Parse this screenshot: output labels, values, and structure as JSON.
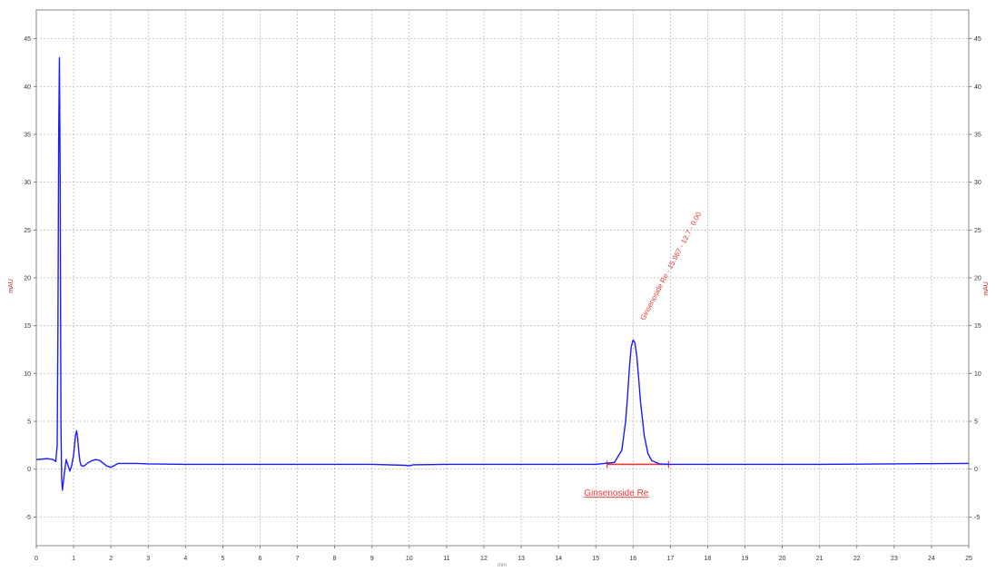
{
  "chart_data": {
    "type": "line",
    "title": "",
    "xlabel": "min",
    "ylabel_left": "mAU",
    "ylabel_right": "mAU",
    "xlim": [
      0,
      25
    ],
    "ylim": [
      -8,
      48
    ],
    "x_ticks": [
      "0",
      "1",
      "2",
      "3",
      "4",
      "5",
      "6",
      "7",
      "8",
      "9",
      "10",
      "11",
      "12",
      "13",
      "14",
      "15",
      "16",
      "17",
      "18",
      "19",
      "20",
      "21",
      "22",
      "23",
      "24",
      "25"
    ],
    "y_ticks": [
      {
        "value": -5,
        "label": "-5"
      },
      {
        "value": 0,
        "label": "0"
      },
      {
        "value": 5,
        "label": "5"
      },
      {
        "value": 10,
        "label": "10"
      },
      {
        "value": 15,
        "label": "15"
      },
      {
        "value": 20,
        "label": "20"
      },
      {
        "value": 25,
        "label": "25"
      },
      {
        "value": 30,
        "label": "30"
      },
      {
        "value": 35,
        "label": "35"
      },
      {
        "value": 40,
        "label": "40"
      },
      {
        "value": 45,
        "label": "45"
      }
    ],
    "grid": true,
    "line_color": "#1a1aff",
    "annotation_color": "#e53935",
    "series": [
      {
        "x": [
          0.0,
          0.3,
          0.45,
          0.52,
          0.56,
          0.58,
          0.6,
          0.62,
          0.64,
          0.66,
          0.68,
          0.7,
          0.72,
          0.75,
          0.8,
          0.85,
          0.9,
          0.95,
          1.0,
          1.05,
          1.08,
          1.11,
          1.14,
          1.17,
          1.2,
          1.25,
          1.3,
          1.4,
          1.5,
          1.6,
          1.7,
          1.8,
          1.9,
          2.0,
          2.1,
          2.2,
          2.4,
          2.7,
          3.0,
          4.0,
          5.0,
          7.0,
          9.0,
          9.9,
          10.0,
          10.1,
          11.0,
          13.0,
          15.0,
          15.5,
          15.7,
          15.8,
          15.85,
          15.9,
          15.95,
          16.0,
          16.05,
          16.1,
          16.15,
          16.2,
          16.3,
          16.4,
          16.5,
          16.7,
          17.0,
          19.0,
          21.0,
          23.0,
          25.0
        ],
        "y": [
          1.0,
          1.1,
          1.0,
          0.8,
          2.5,
          15.0,
          35.0,
          43.0,
          30.0,
          5.0,
          -1.0,
          -2.2,
          -1.5,
          -0.5,
          1.0,
          0.4,
          -0.2,
          0.4,
          1.5,
          3.5,
          4.0,
          3.2,
          1.8,
          0.8,
          0.4,
          0.3,
          0.4,
          0.7,
          0.9,
          1.0,
          0.9,
          0.6,
          0.3,
          0.2,
          0.4,
          0.6,
          0.6,
          0.6,
          0.55,
          0.5,
          0.5,
          0.5,
          0.5,
          0.4,
          0.35,
          0.45,
          0.5,
          0.5,
          0.5,
          0.7,
          2.0,
          5.0,
          7.5,
          10.5,
          12.8,
          13.5,
          13.2,
          11.8,
          9.5,
          7.0,
          3.5,
          1.6,
          0.9,
          0.55,
          0.5,
          0.5,
          0.5,
          0.55,
          0.6
        ]
      }
    ],
    "annotations": [
      {
        "type": "peak-label",
        "x": 16.3,
        "y": 15.5,
        "text": "Ginsenoside Re - 15.967 - 12.7 - 0.00"
      },
      {
        "type": "peak-name",
        "x": 15.55,
        "y": -2.8,
        "text": "Ginsenoside Re"
      },
      {
        "type": "baseline",
        "x_start": 15.3,
        "x_end": 16.95,
        "y": 0.5
      }
    ]
  }
}
